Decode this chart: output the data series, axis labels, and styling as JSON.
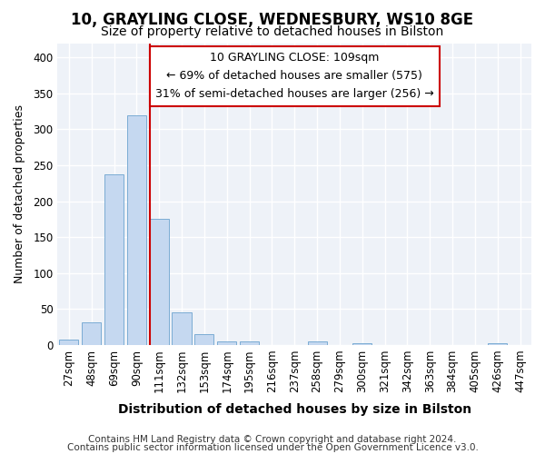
{
  "title1": "10, GRAYLING CLOSE, WEDNESBURY, WS10 8GE",
  "title2": "Size of property relative to detached houses in Bilston",
  "xlabel": "Distribution of detached houses by size in Bilston",
  "ylabel": "Number of detached properties",
  "categories": [
    "27sqm",
    "48sqm",
    "69sqm",
    "90sqm",
    "111sqm",
    "132sqm",
    "153sqm",
    "174sqm",
    "195sqm",
    "216sqm",
    "237sqm",
    "258sqm",
    "279sqm",
    "300sqm",
    "321sqm",
    "342sqm",
    "363sqm",
    "384sqm",
    "405sqm",
    "426sqm",
    "447sqm"
  ],
  "values": [
    8,
    32,
    237,
    320,
    175,
    45,
    15,
    5,
    5,
    0,
    0,
    5,
    0,
    3,
    0,
    0,
    0,
    0,
    0,
    3,
    0
  ],
  "bar_color": "#c5d8f0",
  "bar_edge_color": "#7bacd4",
  "vline_x_index": 4,
  "vline_color": "#cc0000",
  "annotation_line1": "10 GRAYLING CLOSE: 109sqm",
  "annotation_line2": "← 69% of detached houses are smaller (575)",
  "annotation_line3": "31% of semi-detached houses are larger (256) →",
  "annotation_box_color": "white",
  "annotation_box_edge": "#cc0000",
  "ylim": [
    0,
    420
  ],
  "yticks": [
    0,
    50,
    100,
    150,
    200,
    250,
    300,
    350,
    400
  ],
  "bg_color": "#ffffff",
  "plot_bg_color": "#eef2f8",
  "grid_color": "#ffffff",
  "footer1": "Contains HM Land Registry data © Crown copyright and database right 2024.",
  "footer2": "Contains public sector information licensed under the Open Government Licence v3.0.",
  "title1_fontsize": 12,
  "title2_fontsize": 10,
  "xlabel_fontsize": 10,
  "ylabel_fontsize": 9,
  "tick_fontsize": 8.5,
  "annotation_fontsize": 9,
  "footer_fontsize": 7.5
}
